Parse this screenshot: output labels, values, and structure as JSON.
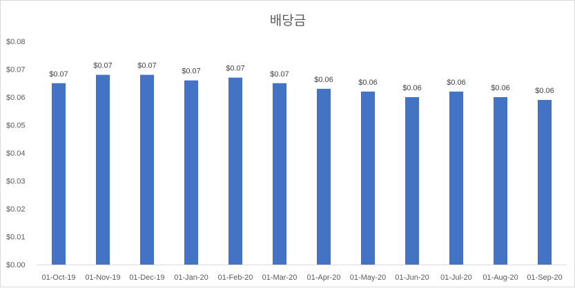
{
  "chart_data": {
    "type": "bar",
    "title": "배당금",
    "categories": [
      "01-Oct-19",
      "01-Nov-19",
      "01-Dec-19",
      "01-Jan-20",
      "01-Feb-20",
      "01-Mar-20",
      "01-Apr-20",
      "01-May-20",
      "01-Jun-20",
      "01-Jul-20",
      "01-Aug-20",
      "01-Sep-20"
    ],
    "values": [
      0.065,
      0.068,
      0.068,
      0.066,
      0.067,
      0.065,
      0.063,
      0.062,
      0.06,
      0.062,
      0.06,
      0.059
    ],
    "data_labels": [
      "$0.07",
      "$0.07",
      "$0.07",
      "$0.07",
      "$0.07",
      "$0.07",
      "$0.06",
      "$0.06",
      "$0.06",
      "$0.06",
      "$0.06",
      "$0.06"
    ],
    "ylim": [
      0,
      0.08
    ],
    "y_ticks": [
      0,
      0.01,
      0.02,
      0.03,
      0.04,
      0.05,
      0.06,
      0.07,
      0.08
    ],
    "y_tick_labels": [
      "$0.00",
      "$0.01",
      "$0.02",
      "$0.03",
      "$0.04",
      "$0.05",
      "$0.06",
      "$0.07",
      "$0.08"
    ],
    "xlabel": "",
    "ylabel": "",
    "grid": false,
    "bar_color": "#4472C4"
  }
}
